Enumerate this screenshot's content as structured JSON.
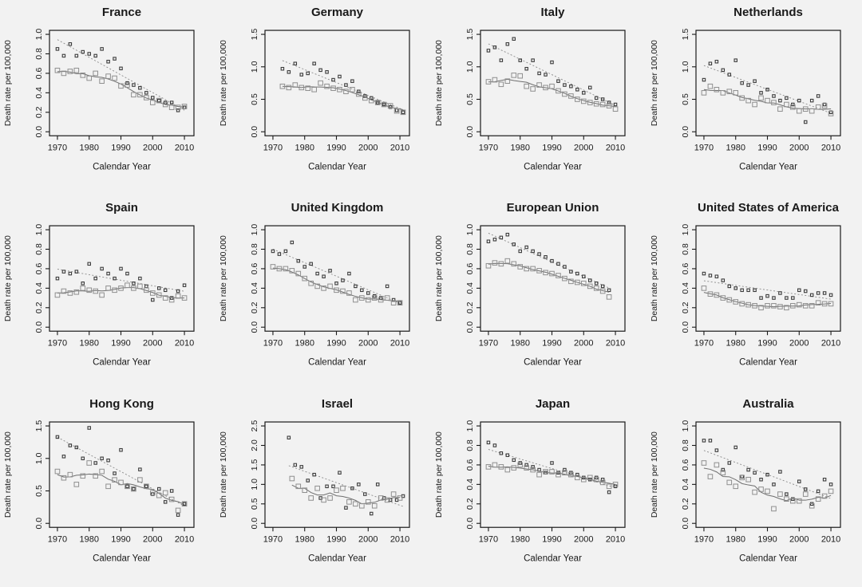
{
  "figure": {
    "description": "3x4 grid of scatter plots of death rates over calendar years by country",
    "xlabel": "Calendar Year",
    "ylabel": "Death rate per 100,000"
  },
  "styles": {
    "background": "#f2f2f2",
    "axis_color": "#1a1a1a",
    "dark_marker": "#3c3c3c",
    "light_marker": "#8f8f8f",
    "dotted_trend": "#8a8a8a",
    "solid_trend": "#6f6f6f"
  },
  "chart_data": [
    {
      "type": "scatter",
      "title": "France",
      "xlabel": "Calendar Year",
      "ylabel": "Death rate per 100,000",
      "xlim": [
        1967.5,
        2013
      ],
      "ylim": [
        0,
        1.0
      ],
      "xticks": [
        1970,
        1980,
        1990,
        2000,
        2010
      ],
      "yticks": [
        0.0,
        0.2,
        0.4,
        0.6,
        0.8,
        1.0
      ],
      "series": [
        {
          "name": "high-series",
          "marker": "small-dark-square",
          "trend": "dotted",
          "start": 1970,
          "step": 2,
          "values": [
            0.85,
            0.78,
            0.9,
            0.78,
            0.82,
            0.8,
            0.78,
            0.85,
            0.72,
            0.75,
            0.65,
            0.5,
            0.48,
            0.45,
            0.4,
            0.35,
            0.32,
            0.3,
            0.3,
            0.22,
            0.25
          ]
        },
        {
          "name": "low-series",
          "marker": "large-light-square",
          "trend": "solid",
          "start": 1970,
          "step": 2,
          "values": [
            0.63,
            0.6,
            0.62,
            0.63,
            0.58,
            0.55,
            0.6,
            0.52,
            0.57,
            0.55,
            0.47,
            0.48,
            0.38,
            0.38,
            0.35,
            0.3,
            0.32,
            0.28,
            0.25,
            0.25,
            0.26
          ]
        }
      ]
    },
    {
      "type": "scatter",
      "title": "Germany",
      "xlabel": "Calendar Year",
      "ylabel": "Death rate per 100,000",
      "xlim": [
        1967.5,
        2013
      ],
      "ylim": [
        0,
        1.5
      ],
      "xticks": [
        1970,
        1980,
        1990,
        2000,
        2010
      ],
      "yticks": [
        0.0,
        0.5,
        1.0,
        1.5
      ],
      "series": [
        {
          "name": "high-series",
          "marker": "small-dark-square",
          "trend": "dotted",
          "start": 1973,
          "step": 2,
          "values": [
            0.97,
            0.92,
            1.05,
            0.88,
            0.9,
            1.05,
            0.95,
            0.92,
            0.8,
            0.85,
            0.72,
            0.78,
            0.62,
            0.55,
            0.52,
            0.45,
            0.42,
            0.38,
            0.33,
            0.3
          ]
        },
        {
          "name": "low-series",
          "marker": "large-light-square",
          "trend": "solid",
          "start": 1973,
          "step": 2,
          "values": [
            0.7,
            0.68,
            0.72,
            0.68,
            0.67,
            0.65,
            0.75,
            0.7,
            0.67,
            0.65,
            0.62,
            0.65,
            0.58,
            0.52,
            0.48,
            0.45,
            0.42,
            0.4,
            0.32,
            0.3
          ]
        }
      ]
    },
    {
      "type": "scatter",
      "title": "Italy",
      "xlabel": "Calendar Year",
      "ylabel": "Death rate per 100,000",
      "xlim": [
        1967.5,
        2013
      ],
      "ylim": [
        0,
        1.5
      ],
      "xticks": [
        1970,
        1980,
        1990,
        2000,
        2010
      ],
      "yticks": [
        0.0,
        0.5,
        1.0,
        1.5
      ],
      "series": [
        {
          "name": "high-series",
          "marker": "small-dark-square",
          "trend": "dotted",
          "start": 1970,
          "step": 2,
          "values": [
            1.25,
            1.3,
            1.1,
            1.35,
            1.43,
            1.1,
            0.97,
            1.1,
            0.9,
            0.88,
            1.07,
            0.78,
            0.72,
            0.7,
            0.65,
            0.6,
            0.68,
            0.52,
            0.5,
            0.45,
            0.42
          ]
        },
        {
          "name": "low-series",
          "marker": "large-light-square",
          "trend": "solid",
          "start": 1970,
          "step": 2,
          "values": [
            0.77,
            0.8,
            0.73,
            0.78,
            0.87,
            0.86,
            0.7,
            0.66,
            0.72,
            0.68,
            0.7,
            0.63,
            0.58,
            0.55,
            0.5,
            0.47,
            0.45,
            0.43,
            0.42,
            0.4,
            0.35
          ]
        }
      ]
    },
    {
      "type": "scatter",
      "title": "Netherlands",
      "xlabel": "Calendar Year",
      "ylabel": "Death rate per 100,000",
      "xlim": [
        1967.5,
        2013
      ],
      "ylim": [
        0,
        1.5
      ],
      "xticks": [
        1970,
        1980,
        1990,
        2000,
        2010
      ],
      "yticks": [
        0.0,
        0.5,
        1.0,
        1.5
      ],
      "series": [
        {
          "name": "high-series",
          "marker": "small-dark-square",
          "trend": "dotted",
          "start": 1970,
          "step": 2,
          "values": [
            0.8,
            1.05,
            1.08,
            0.95,
            0.88,
            1.1,
            0.75,
            0.72,
            0.78,
            0.6,
            0.65,
            0.55,
            0.48,
            0.52,
            0.42,
            0.48,
            0.15,
            0.48,
            0.55,
            0.42,
            0.3
          ]
        },
        {
          "name": "low-series",
          "marker": "large-light-square",
          "trend": "solid",
          "start": 1970,
          "step": 2,
          "values": [
            0.6,
            0.7,
            0.65,
            0.6,
            0.62,
            0.6,
            0.52,
            0.48,
            0.42,
            0.52,
            0.48,
            0.45,
            0.35,
            0.42,
            0.38,
            0.32,
            0.35,
            0.32,
            0.38,
            0.4,
            0.28
          ]
        }
      ]
    },
    {
      "type": "scatter",
      "title": "Spain",
      "xlabel": "Calendar Year",
      "ylabel": "Death rate per 100,000",
      "xlim": [
        1967.5,
        2013
      ],
      "ylim": [
        0,
        1.0
      ],
      "xticks": [
        1970,
        1980,
        1990,
        2000,
        2010
      ],
      "yticks": [
        0.0,
        0.2,
        0.4,
        0.6,
        0.8,
        1.0
      ],
      "series": [
        {
          "name": "high-series",
          "marker": "small-dark-square",
          "trend": "dotted",
          "start": 1970,
          "step": 2,
          "values": [
            0.5,
            0.57,
            0.55,
            0.57,
            0.45,
            0.65,
            0.5,
            0.6,
            0.55,
            0.5,
            0.6,
            0.55,
            0.45,
            0.5,
            0.42,
            0.28,
            0.4,
            0.38,
            0.3,
            0.37,
            0.43
          ]
        },
        {
          "name": "low-series",
          "marker": "large-light-square",
          "trend": "solid",
          "start": 1970,
          "step": 2,
          "values": [
            0.33,
            0.37,
            0.35,
            0.36,
            0.4,
            0.38,
            0.37,
            0.33,
            0.4,
            0.38,
            0.4,
            0.43,
            0.4,
            0.42,
            0.38,
            0.35,
            0.33,
            0.3,
            0.28,
            0.32,
            0.3
          ]
        }
      ]
    },
    {
      "type": "scatter",
      "title": "United Kingdom",
      "xlabel": "Calendar Year",
      "ylabel": "Death rate per 100,000",
      "xlim": [
        1967.5,
        2013
      ],
      "ylim": [
        0,
        1.0
      ],
      "xticks": [
        1970,
        1980,
        1990,
        2000,
        2010
      ],
      "yticks": [
        0.0,
        0.2,
        0.4,
        0.6,
        0.8,
        1.0
      ],
      "series": [
        {
          "name": "high-series",
          "marker": "small-dark-square",
          "trend": "dotted",
          "start": 1970,
          "step": 2,
          "values": [
            0.78,
            0.75,
            0.78,
            0.87,
            0.68,
            0.62,
            0.65,
            0.55,
            0.52,
            0.58,
            0.45,
            0.48,
            0.55,
            0.42,
            0.38,
            0.35,
            0.32,
            0.3,
            0.42,
            0.28,
            0.25
          ]
        },
        {
          "name": "low-series",
          "marker": "large-light-square",
          "trend": "solid",
          "start": 1970,
          "step": 2,
          "values": [
            0.62,
            0.6,
            0.6,
            0.58,
            0.55,
            0.5,
            0.45,
            0.42,
            0.4,
            0.42,
            0.38,
            0.37,
            0.35,
            0.28,
            0.3,
            0.28,
            0.3,
            0.28,
            0.3,
            0.25,
            0.25
          ]
        }
      ]
    },
    {
      "type": "scatter",
      "title": "European Union",
      "xlabel": "Calendar Year",
      "ylabel": "Death rate per 100,000",
      "xlim": [
        1967.5,
        2013
      ],
      "ylim": [
        0,
        1.0
      ],
      "xticks": [
        1970,
        1980,
        1990,
        2000,
        2010
      ],
      "yticks": [
        0.0,
        0.2,
        0.4,
        0.6,
        0.8,
        1.0
      ],
      "series": [
        {
          "name": "high-series",
          "marker": "small-dark-square",
          "trend": "dotted",
          "start": 1970,
          "step": 2,
          "values": [
            0.88,
            0.9,
            0.92,
            0.95,
            0.85,
            0.78,
            0.82,
            0.78,
            0.75,
            0.72,
            0.68,
            0.65,
            0.62,
            0.57,
            0.55,
            0.52,
            0.48,
            0.45,
            0.42,
            0.38
          ]
        },
        {
          "name": "low-series",
          "marker": "large-light-square",
          "trend": "solid",
          "start": 1970,
          "step": 2,
          "values": [
            0.63,
            0.66,
            0.65,
            0.68,
            0.65,
            0.62,
            0.6,
            0.6,
            0.58,
            0.56,
            0.55,
            0.53,
            0.5,
            0.47,
            0.46,
            0.45,
            0.42,
            0.4,
            0.37,
            0.31
          ]
        }
      ]
    },
    {
      "type": "scatter",
      "title": "United States of America",
      "xlabel": "Calendar Year",
      "ylabel": "Death rate per 100,000",
      "xlim": [
        1967.5,
        2013
      ],
      "ylim": [
        0,
        1.0
      ],
      "xticks": [
        1970,
        1980,
        1990,
        2000,
        2010
      ],
      "yticks": [
        0.0,
        0.2,
        0.4,
        0.6,
        0.8,
        1.0
      ],
      "series": [
        {
          "name": "high-series",
          "marker": "small-dark-square",
          "trend": "dotted",
          "start": 1970,
          "step": 2,
          "values": [
            0.55,
            0.53,
            0.52,
            0.48,
            0.42,
            0.4,
            0.38,
            0.38,
            0.38,
            0.3,
            0.32,
            0.3,
            0.35,
            0.3,
            0.3,
            0.38,
            0.37,
            0.33,
            0.35,
            0.35,
            0.33
          ]
        },
        {
          "name": "low-series",
          "marker": "large-light-square",
          "trend": "solid",
          "start": 1970,
          "step": 2,
          "values": [
            0.4,
            0.34,
            0.33,
            0.3,
            0.28,
            0.26,
            0.24,
            0.23,
            0.22,
            0.2,
            0.22,
            0.22,
            0.21,
            0.2,
            0.22,
            0.23,
            0.22,
            0.22,
            0.25,
            0.24,
            0.24
          ]
        }
      ]
    },
    {
      "type": "scatter",
      "title": "Hong Kong",
      "xlabel": "Calendar Year",
      "ylabel": "Death rate per 100,000",
      "xlim": [
        1967.5,
        2013
      ],
      "ylim": [
        0,
        1.5
      ],
      "xticks": [
        1970,
        1980,
        1990,
        2000,
        2010
      ],
      "yticks": [
        0.0,
        0.5,
        1.0,
        1.5
      ],
      "series": [
        {
          "name": "high-series",
          "marker": "small-dark-square",
          "trend": "dotted",
          "start": 1970,
          "step": 2,
          "values": [
            1.33,
            1.03,
            1.2,
            1.17,
            1.0,
            1.47,
            0.93,
            1.0,
            0.97,
            0.77,
            1.13,
            0.57,
            0.53,
            0.83,
            0.57,
            0.45,
            0.53,
            0.33,
            0.5,
            0.13,
            0.3
          ]
        },
        {
          "name": "low-series",
          "marker": "large-light-square",
          "trend": "solid",
          "start": 1970,
          "step": 2,
          "values": [
            0.8,
            0.7,
            0.75,
            0.6,
            0.73,
            0.93,
            0.73,
            0.8,
            0.57,
            0.67,
            0.63,
            0.57,
            0.53,
            0.67,
            0.57,
            0.47,
            0.43,
            0.47,
            0.37,
            0.2,
            0.3
          ]
        }
      ]
    },
    {
      "type": "scatter",
      "title": "Israel",
      "xlabel": "Calendar Year",
      "ylabel": "Death rate per 100,000",
      "xlim": [
        1967.5,
        2013
      ],
      "ylim": [
        0,
        2.5
      ],
      "xticks": [
        1970,
        1980,
        1990,
        2000,
        2010
      ],
      "yticks": [
        0.0,
        0.5,
        1.0,
        1.5,
        2.0,
        2.5
      ],
      "series": [
        {
          "name": "high-series",
          "marker": "small-dark-square",
          "trend": "dotted",
          "start": 1975,
          "step": 2,
          "values": [
            2.2,
            1.5,
            1.45,
            1.1,
            1.25,
            0.65,
            0.95,
            0.95,
            1.3,
            0.4,
            0.9,
            1.0,
            0.75,
            0.25,
            1.0,
            0.65,
            0.6,
            0.6,
            0.7
          ]
        },
        {
          "name": "low-series",
          "marker": "large-light-square",
          "trend": "solid",
          "start": 1976,
          "step": 2,
          "values": [
            1.15,
            0.95,
            0.85,
            0.65,
            0.9,
            0.6,
            0.65,
            0.85,
            0.9,
            0.55,
            0.5,
            0.45,
            0.55,
            0.45,
            0.65,
            0.6,
            0.75,
            0.65
          ]
        }
      ]
    },
    {
      "type": "scatter",
      "title": "Japan",
      "xlabel": "Calendar Year",
      "ylabel": "Death rate per 100,000",
      "xlim": [
        1967.5,
        2013
      ],
      "ylim": [
        0,
        1.0
      ],
      "xticks": [
        1970,
        1980,
        1990,
        2000,
        2010
      ],
      "yticks": [
        0.0,
        0.2,
        0.4,
        0.6,
        0.8,
        1.0
      ],
      "series": [
        {
          "name": "high-series",
          "marker": "small-dark-square",
          "trend": "dotted",
          "start": 1970,
          "step": 2,
          "values": [
            0.83,
            0.8,
            0.72,
            0.7,
            0.65,
            0.62,
            0.6,
            0.58,
            0.55,
            0.52,
            0.62,
            0.52,
            0.55,
            0.52,
            0.5,
            0.47,
            0.45,
            0.47,
            0.45,
            0.32,
            0.38
          ]
        },
        {
          "name": "low-series",
          "marker": "large-light-square",
          "trend": "solid",
          "start": 1970,
          "step": 2,
          "values": [
            0.58,
            0.6,
            0.58,
            0.55,
            0.57,
            0.6,
            0.57,
            0.55,
            0.5,
            0.53,
            0.53,
            0.5,
            0.52,
            0.5,
            0.47,
            0.45,
            0.47,
            0.45,
            0.42,
            0.38,
            0.4
          ]
        }
      ]
    },
    {
      "type": "scatter",
      "title": "Australia",
      "xlabel": "Calendar Year",
      "ylabel": "Death rate per 100,000",
      "xlim": [
        1967.5,
        2013
      ],
      "ylim": [
        0,
        1.0
      ],
      "xticks": [
        1970,
        1980,
        1990,
        2000,
        2010
      ],
      "yticks": [
        0.0,
        0.2,
        0.4,
        0.6,
        0.8,
        1.0
      ],
      "series": [
        {
          "name": "high-series",
          "marker": "small-dark-square",
          "trend": "dotted",
          "start": 1970,
          "step": 2,
          "values": [
            0.85,
            0.85,
            0.75,
            0.55,
            0.62,
            0.78,
            0.48,
            0.55,
            0.52,
            0.45,
            0.5,
            0.4,
            0.53,
            0.3,
            0.25,
            0.43,
            0.35,
            0.2,
            0.33,
            0.45,
            0.4
          ]
        },
        {
          "name": "low-series",
          "marker": "large-light-square",
          "trend": "solid",
          "start": 1970,
          "step": 2,
          "values": [
            0.62,
            0.48,
            0.6,
            0.52,
            0.42,
            0.38,
            0.47,
            0.45,
            0.32,
            0.35,
            0.33,
            0.15,
            0.3,
            0.25,
            0.23,
            0.23,
            0.3,
            0.18,
            0.25,
            0.28,
            0.33
          ]
        }
      ]
    }
  ]
}
